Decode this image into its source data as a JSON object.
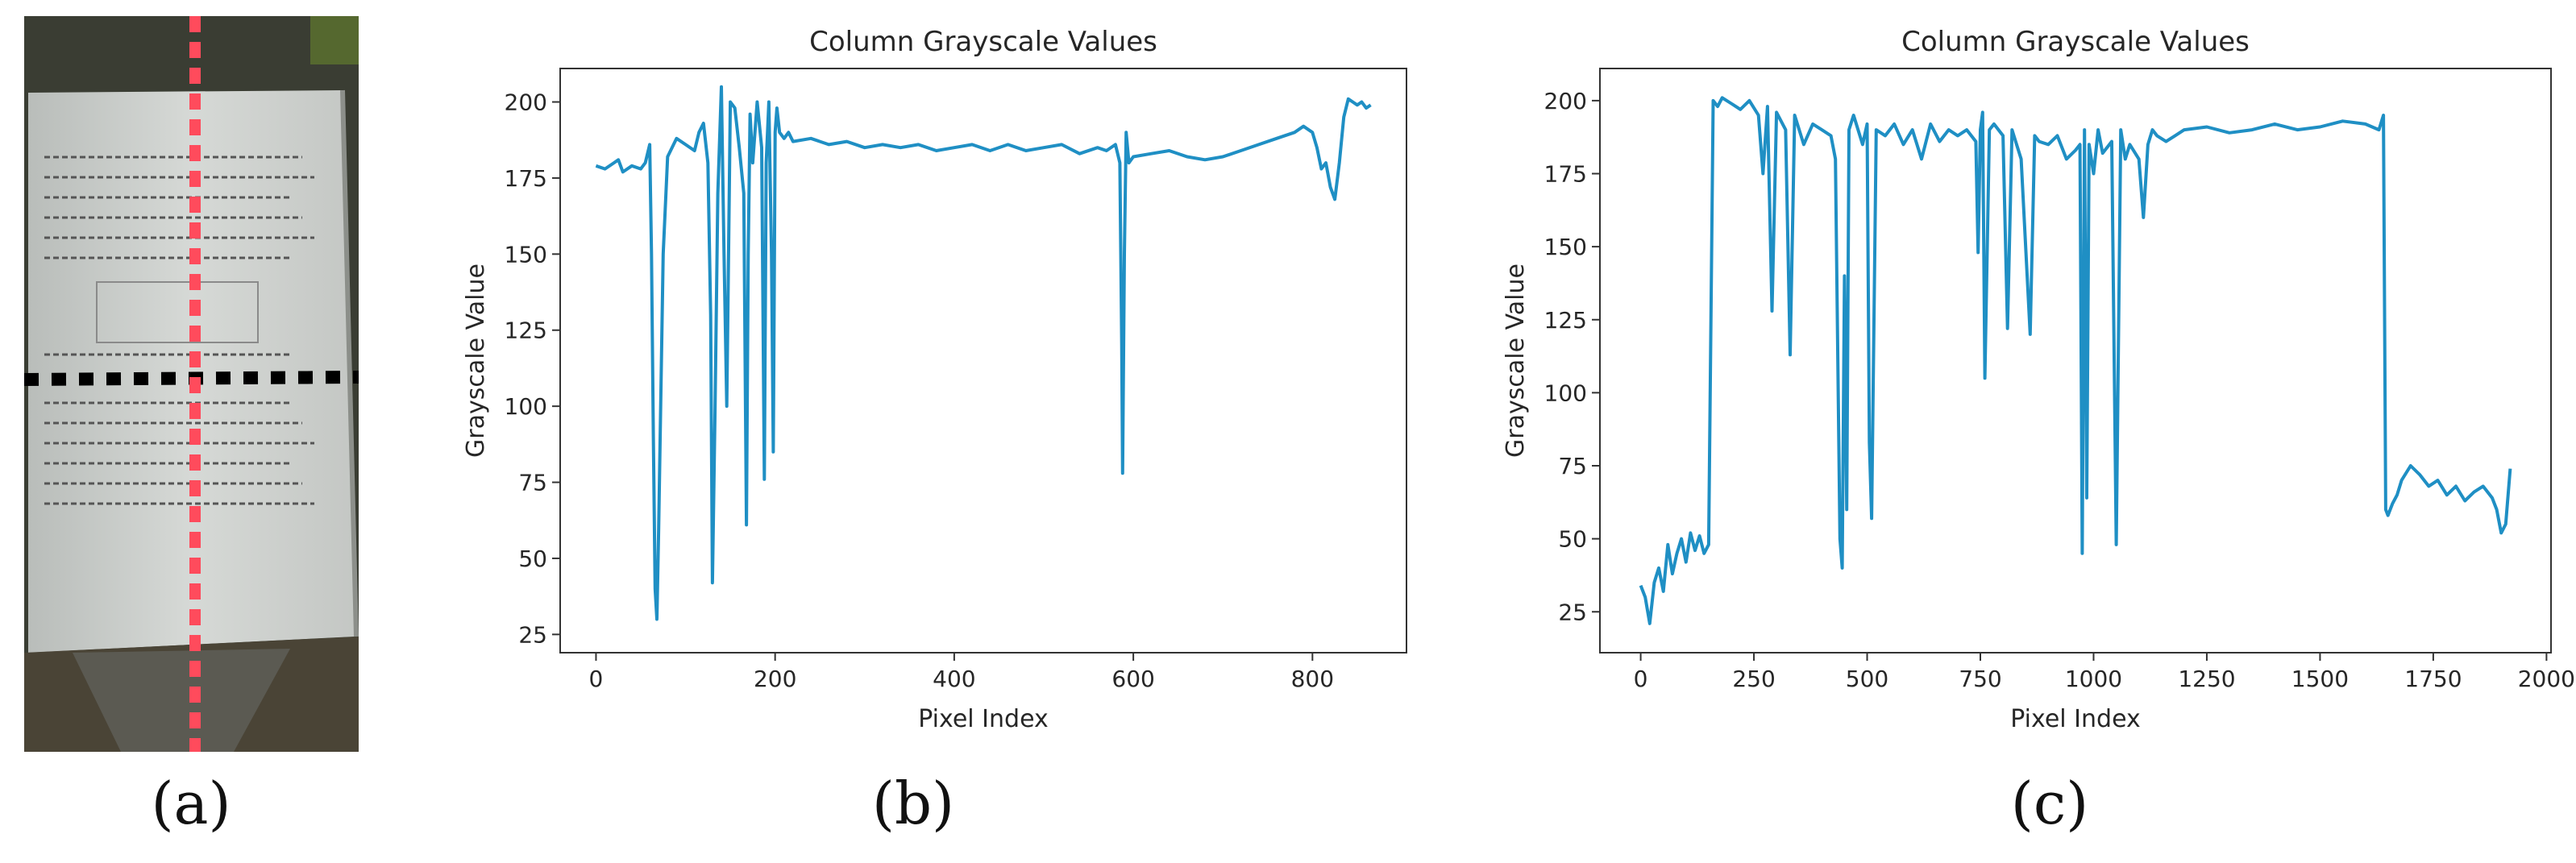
{
  "panels": {
    "a": {
      "label": "(a)"
    },
    "b": {
      "label": "(b)"
    },
    "c": {
      "label": "(c)"
    }
  },
  "chart_data": [
    {
      "type": "line",
      "title": "Column Grayscale Values",
      "xlabel": "Pixel Index",
      "ylabel": "Grayscale Value",
      "xlim": [
        -40,
        905
      ],
      "ylim": [
        19,
        211
      ],
      "xticks": [
        0,
        200,
        400,
        600,
        800
      ],
      "yticks": [
        25,
        50,
        75,
        100,
        125,
        150,
        175,
        200
      ],
      "color": "#1f8fc4",
      "grid": false,
      "series": [
        {
          "x": [
            0,
            10,
            20,
            25,
            30,
            40,
            50,
            55,
            60,
            62,
            64,
            66,
            68,
            70,
            75,
            80,
            90,
            100,
            110,
            115,
            120,
            125,
            128,
            130,
            133,
            136,
            140,
            143,
            146,
            150,
            155,
            160,
            165,
            168,
            170,
            172,
            175,
            180,
            185,
            188,
            190,
            193,
            196,
            198,
            200,
            202,
            205,
            210,
            215,
            220,
            240,
            260,
            280,
            300,
            320,
            340,
            360,
            380,
            400,
            420,
            440,
            460,
            480,
            500,
            520,
            540,
            560,
            570,
            580,
            585,
            587,
            588,
            590,
            592,
            595,
            600,
            620,
            640,
            660,
            680,
            700,
            720,
            740,
            760,
            780,
            790,
            800,
            805,
            810,
            815,
            820,
            825,
            830,
            835,
            840,
            845,
            850,
            855,
            860,
            865
          ],
          "y": [
            179,
            178,
            180,
            181,
            177,
            179,
            178,
            180,
            186,
            150,
            90,
            40,
            30,
            60,
            150,
            182,
            188,
            186,
            184,
            190,
            193,
            180,
            130,
            42,
            100,
            170,
            205,
            150,
            100,
            200,
            198,
            185,
            170,
            61,
            150,
            196,
            180,
            200,
            185,
            76,
            180,
            200,
            150,
            85,
            190,
            198,
            190,
            188,
            190,
            187,
            188,
            186,
            187,
            185,
            186,
            185,
            186,
            184,
            185,
            186,
            184,
            186,
            184,
            185,
            186,
            183,
            185,
            184,
            186,
            180,
            120,
            78,
            150,
            190,
            180,
            182,
            183,
            184,
            182,
            181,
            182,
            184,
            186,
            188,
            190,
            192,
            190,
            185,
            178,
            180,
            172,
            168,
            180,
            195,
            201,
            200,
            199,
            200,
            198,
            199
          ]
        }
      ]
    },
    {
      "type": "line",
      "title": "Column Grayscale Values",
      "xlabel": "Pixel Index",
      "ylabel": "Grayscale Value",
      "xlim": [
        -90,
        2010
      ],
      "ylim": [
        11,
        211
      ],
      "xticks": [
        0,
        250,
        500,
        750,
        1000,
        1250,
        1500,
        1750,
        2000
      ],
      "yticks": [
        25,
        50,
        75,
        100,
        125,
        150,
        175,
        200
      ],
      "color": "#1f8fc4",
      "grid": false,
      "series": [
        {
          "x": [
            0,
            10,
            20,
            30,
            40,
            50,
            60,
            70,
            80,
            90,
            100,
            110,
            120,
            130,
            140,
            150,
            160,
            170,
            180,
            200,
            220,
            240,
            260,
            270,
            280,
            290,
            300,
            320,
            330,
            340,
            360,
            380,
            400,
            420,
            430,
            440,
            445,
            450,
            455,
            460,
            470,
            480,
            490,
            500,
            505,
            510,
            520,
            540,
            560,
            580,
            600,
            620,
            640,
            660,
            680,
            700,
            720,
            740,
            745,
            750,
            755,
            760,
            770,
            780,
            800,
            810,
            820,
            840,
            860,
            870,
            880,
            900,
            920,
            940,
            960,
            970,
            975,
            980,
            985,
            990,
            1000,
            1010,
            1020,
            1040,
            1050,
            1060,
            1070,
            1080,
            1100,
            1110,
            1120,
            1130,
            1140,
            1160,
            1180,
            1200,
            1250,
            1300,
            1350,
            1400,
            1450,
            1500,
            1550,
            1600,
            1630,
            1640,
            1645,
            1650,
            1660,
            1670,
            1680,
            1700,
            1720,
            1740,
            1760,
            1780,
            1800,
            1820,
            1840,
            1860,
            1880,
            1890,
            1900,
            1910,
            1920
          ],
          "y": [
            34,
            30,
            21,
            35,
            40,
            32,
            48,
            38,
            45,
            50,
            42,
            52,
            46,
            51,
            45,
            48,
            200,
            198,
            201,
            199,
            197,
            200,
            195,
            175,
            198,
            128,
            196,
            190,
            113,
            195,
            185,
            192,
            190,
            188,
            180,
            50,
            40,
            140,
            60,
            190,
            195,
            190,
            185,
            192,
            83,
            57,
            190,
            188,
            192,
            185,
            190,
            180,
            192,
            186,
            190,
            188,
            190,
            186,
            148,
            190,
            196,
            105,
            190,
            192,
            188,
            122,
            190,
            180,
            120,
            188,
            186,
            185,
            188,
            180,
            183,
            185,
            45,
            190,
            64,
            185,
            175,
            190,
            182,
            186,
            48,
            190,
            180,
            185,
            180,
            160,
            185,
            190,
            188,
            186,
            188,
            190,
            191,
            189,
            190,
            192,
            190,
            191,
            193,
            192,
            190,
            195,
            60,
            58,
            62,
            65,
            70,
            75,
            72,
            68,
            70,
            65,
            68,
            63,
            66,
            68,
            64,
            60,
            52,
            55,
            74
          ]
        }
      ]
    }
  ]
}
